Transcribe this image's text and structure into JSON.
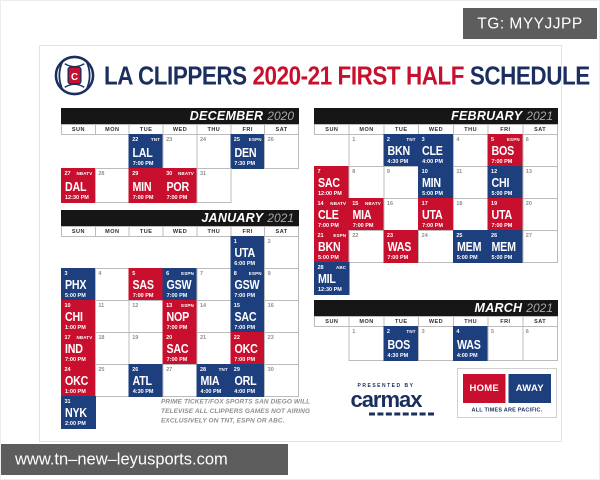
{
  "watermarks": {
    "top_right": "TG: MYYJJPP",
    "bottom_left": "www.tn–new–leyusports.com"
  },
  "title": {
    "team": "LA CLIPPERS ",
    "highlight": "2020-21 FIRST HALF",
    "suffix": " SCHEDULE"
  },
  "colors": {
    "home": "#c8102e",
    "away": "#1e3f7d",
    "navy": "#1b2f5e"
  },
  "day_headers": [
    "SUN",
    "MON",
    "TUE",
    "WED",
    "THU",
    "FRI",
    "SAT"
  ],
  "months": [
    {
      "id": "december",
      "name": "DECEMBER",
      "year": "2020",
      "weeks": [
        [
          null,
          null,
          {
            "day": "22",
            "tv": "TNT",
            "team": "LAL",
            "time": "7:00 PM",
            "type": "away"
          },
          {
            "day": "23"
          },
          {
            "day": "24"
          },
          {
            "day": "25",
            "tv": "ESPN",
            "team": "DEN",
            "time": "7:30 PM",
            "type": "away"
          },
          {
            "day": "26"
          }
        ],
        [
          {
            "day": "27",
            "tv": "NBATV",
            "team": "DAL",
            "time": "12:30 PM",
            "type": "home"
          },
          {
            "day": "28"
          },
          {
            "day": "29",
            "team": "MIN",
            "time": "7:00 PM",
            "type": "home"
          },
          {
            "day": "30",
            "tv": "NBATV",
            "team": "POR",
            "time": "7:00 PM",
            "type": "home"
          },
          {
            "day": "31"
          },
          null,
          null
        ]
      ]
    },
    {
      "id": "january",
      "name": "JANUARY",
      "year": "2021",
      "weeks": [
        [
          null,
          null,
          null,
          null,
          null,
          {
            "day": "1",
            "team": "UTA",
            "time": "6:00 PM",
            "type": "away"
          },
          {
            "day": "2"
          }
        ],
        [
          {
            "day": "3",
            "team": "PHX",
            "time": "5:00 PM",
            "type": "away"
          },
          {
            "day": "4"
          },
          {
            "day": "5",
            "team": "SAS",
            "time": "7:00 PM",
            "type": "home"
          },
          {
            "day": "6",
            "tv": "ESPN",
            "team": "GSW",
            "time": "7:00 PM",
            "type": "away"
          },
          {
            "day": "7"
          },
          {
            "day": "8",
            "tv": "ESPN",
            "team": "GSW",
            "time": "7:00 PM",
            "type": "away"
          },
          {
            "day": "9"
          }
        ],
        [
          {
            "day": "10",
            "team": "CHI",
            "time": "1:00 PM",
            "type": "home"
          },
          {
            "day": "11"
          },
          {
            "day": "12"
          },
          {
            "day": "13",
            "tv": "ESPN",
            "team": "NOP",
            "time": "7:00 PM",
            "type": "home"
          },
          {
            "day": "14"
          },
          {
            "day": "15",
            "team": "SAC",
            "time": "7:00 PM",
            "type": "away"
          },
          {
            "day": "16"
          }
        ],
        [
          {
            "day": "17",
            "tv": "NBATV",
            "team": "IND",
            "time": "7:00 PM",
            "type": "home"
          },
          {
            "day": "18"
          },
          {
            "day": "19"
          },
          {
            "day": "20",
            "team": "SAC",
            "time": "7:00 PM",
            "type": "home"
          },
          {
            "day": "21"
          },
          {
            "day": "22",
            "team": "OKC",
            "time": "7:00 PM",
            "type": "home"
          },
          {
            "day": "23"
          }
        ],
        [
          {
            "day": "24",
            "team": "OKC",
            "time": "1:00 PM",
            "type": "home"
          },
          {
            "day": "25"
          },
          {
            "day": "26",
            "team": "ATL",
            "time": "4:30 PM",
            "type": "away"
          },
          {
            "day": "27"
          },
          {
            "day": "28",
            "tv": "TNT",
            "team": "MIA",
            "time": "4:00 PM",
            "type": "away"
          },
          {
            "day": "29",
            "team": "ORL",
            "time": "4:00 PM",
            "type": "away"
          },
          {
            "day": "30"
          }
        ],
        [
          {
            "day": "31",
            "team": "NYK",
            "time": "2:00 PM",
            "type": "away"
          },
          null,
          null,
          null,
          null,
          null,
          null
        ]
      ]
    },
    {
      "id": "february",
      "name": "FEBRUARY",
      "year": "2021",
      "weeks": [
        [
          null,
          {
            "day": "1"
          },
          {
            "day": "2",
            "tv": "TNT",
            "team": "BKN",
            "time": "4:30 PM",
            "type": "away"
          },
          {
            "day": "3",
            "team": "CLE",
            "time": "4:00 PM",
            "type": "away"
          },
          {
            "day": "4"
          },
          {
            "day": "5",
            "tv": "ESPN",
            "team": "BOS",
            "time": "7:00 PM",
            "type": "home"
          },
          {
            "day": "6"
          }
        ],
        [
          {
            "day": "7",
            "team": "SAC",
            "time": "12:00 PM",
            "type": "home"
          },
          {
            "day": "8"
          },
          {
            "day": "9"
          },
          {
            "day": "10",
            "team": "MIN",
            "time": "5:00 PM",
            "type": "away"
          },
          {
            "day": "11"
          },
          {
            "day": "12",
            "team": "CHI",
            "time": "5:00 PM",
            "type": "away"
          },
          {
            "day": "13"
          }
        ],
        [
          {
            "day": "14",
            "tv": "NBATV",
            "team": "CLE",
            "time": "7:00 PM",
            "type": "home"
          },
          {
            "day": "15",
            "tv": "NBATV",
            "team": "MIA",
            "time": "7:00 PM",
            "type": "home"
          },
          {
            "day": "16"
          },
          {
            "day": "17",
            "team": "UTA",
            "time": "7:00 PM",
            "type": "home"
          },
          {
            "day": "18"
          },
          {
            "day": "19",
            "team": "UTA",
            "time": "7:00 PM",
            "type": "home"
          },
          {
            "day": "20"
          }
        ],
        [
          {
            "day": "21",
            "tv": "ESPN",
            "team": "BKN",
            "time": "5:00 PM",
            "type": "home"
          },
          {
            "day": "22"
          },
          {
            "day": "23",
            "team": "WAS",
            "time": "7:00 PM",
            "type": "home"
          },
          {
            "day": "24"
          },
          {
            "day": "25",
            "team": "MEM",
            "time": "5:00 PM",
            "type": "away"
          },
          {
            "day": "26",
            "team": "MEM",
            "time": "5:00 PM",
            "type": "away"
          },
          {
            "day": "27"
          }
        ],
        [
          {
            "day": "28",
            "tv": "ABC",
            "team": "MIL",
            "time": "12:30 PM",
            "type": "away"
          },
          null,
          null,
          null,
          null,
          null,
          null
        ]
      ]
    },
    {
      "id": "march",
      "name": "MARCH",
      "year": "2021",
      "weeks": [
        [
          null,
          {
            "day": "1"
          },
          {
            "day": "2",
            "tv": "TNT",
            "team": "BOS",
            "time": "4:30 PM",
            "type": "away"
          },
          {
            "day": "3"
          },
          {
            "day": "4",
            "team": "WAS",
            "time": "4:00 PM",
            "type": "away"
          },
          {
            "day": "5"
          },
          {
            "day": "6"
          }
        ]
      ]
    }
  ],
  "note": "PRIME TICKET/FOX SPORTS SAN DIEGO WILL TELEVISE ALL CLIPPERS GAMES NOT AIRING EXCLUSIVELY ON TNT, ESPN OR ABC.",
  "presented_by": {
    "label": "PRESENTED BY",
    "sponsor": "carmax"
  },
  "legend": {
    "home": "HOME",
    "away": "AWAY",
    "footnote": "ALL TIMES ARE PACIFIC."
  }
}
